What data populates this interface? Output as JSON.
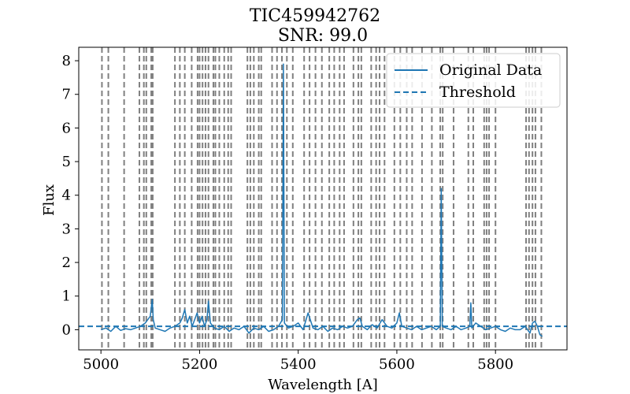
{
  "chart_data": {
    "type": "line",
    "title": "TIC459942762",
    "subtitle": "SNR: 99.0",
    "xlabel": "Wavelength [A]",
    "ylabel": "Flux",
    "xlim": [
      4955,
      5945
    ],
    "ylim": [
      -0.6,
      8.4
    ],
    "xticks": [
      5000,
      5200,
      5400,
      5600,
      5800
    ],
    "yticks": [
      0,
      1,
      2,
      3,
      4,
      5,
      6,
      7,
      8
    ],
    "grid": false,
    "legend": {
      "placement": "top-right",
      "entries": [
        "Original Data",
        "Threshold"
      ]
    },
    "colors": {
      "data": "#1f77b4",
      "threshold": "#1f77b4",
      "vlines": "#808080"
    },
    "series": [
      {
        "name": "Original Data",
        "style": "solid",
        "x": [
          5000,
          5010,
          5020,
          5030,
          5040,
          5050,
          5060,
          5070,
          5080,
          5090,
          5100,
          5104,
          5106,
          5110,
          5120,
          5130,
          5140,
          5150,
          5160,
          5165,
          5170,
          5175,
          5180,
          5185,
          5190,
          5195,
          5200,
          5205,
          5210,
          5215,
          5218,
          5222,
          5230,
          5240,
          5250,
          5260,
          5270,
          5280,
          5290,
          5300,
          5310,
          5320,
          5330,
          5340,
          5350,
          5360,
          5368,
          5370,
          5372,
          5380,
          5390,
          5400,
          5410,
          5420,
          5430,
          5440,
          5450,
          5460,
          5470,
          5480,
          5490,
          5500,
          5510,
          5520,
          5525,
          5530,
          5540,
          5550,
          5560,
          5570,
          5580,
          5590,
          5600,
          5605,
          5610,
          5620,
          5630,
          5640,
          5650,
          5660,
          5670,
          5680,
          5688,
          5690,
          5692,
          5700,
          5710,
          5720,
          5730,
          5740,
          5748,
          5750,
          5752,
          5760,
          5770,
          5780,
          5790,
          5800,
          5810,
          5820,
          5830,
          5840,
          5850,
          5860,
          5870,
          5875,
          5880,
          5885,
          5890,
          5895
        ],
        "y": [
          0.0,
          0.05,
          -0.05,
          0.1,
          -0.02,
          0.03,
          0.0,
          0.05,
          0.1,
          0.2,
          0.4,
          0.9,
          0.3,
          0.05,
          0.0,
          -0.05,
          0.05,
          0.1,
          0.2,
          0.35,
          0.6,
          0.2,
          0.4,
          0.1,
          0.3,
          0.5,
          0.2,
          0.4,
          0.1,
          0.3,
          0.85,
          0.2,
          0.05,
          0.0,
          0.1,
          -0.05,
          0.05,
          0.0,
          0.1,
          -0.1,
          0.05,
          0.0,
          0.1,
          -0.05,
          0.0,
          0.1,
          0.3,
          7.9,
          0.2,
          0.05,
          0.1,
          0.2,
          0.0,
          0.5,
          0.05,
          0.0,
          0.1,
          -0.05,
          0.05,
          0.0,
          0.1,
          0.05,
          0.1,
          0.3,
          0.35,
          0.1,
          0.0,
          0.15,
          0.05,
          0.3,
          0.1,
          0.05,
          0.2,
          0.5,
          0.1,
          0.05,
          0.0,
          0.1,
          0.0,
          0.05,
          0.1,
          0.0,
          0.1,
          4.2,
          0.1,
          0.05,
          0.0,
          0.1,
          0.0,
          0.05,
          0.1,
          0.8,
          0.05,
          0.2,
          0.1,
          0.0,
          0.05,
          0.1,
          0.0,
          -0.05,
          0.05,
          0.0,
          0.0,
          0.1,
          -0.1,
          0.2,
          0.25,
          0.1,
          -0.15,
          -0.2
        ]
      },
      {
        "name": "Threshold",
        "style": "dashed",
        "y": 0.1
      }
    ],
    "vlines_x": [
      5002,
      5015,
      5047,
      5078,
      5087,
      5092,
      5102,
      5105,
      5150,
      5160,
      5170,
      5184,
      5196,
      5200,
      5206,
      5212,
      5218,
      5228,
      5232,
      5240,
      5250,
      5258,
      5264,
      5297,
      5303,
      5310,
      5320,
      5325,
      5347,
      5357,
      5367,
      5377,
      5389,
      5412,
      5423,
      5435,
      5448,
      5463,
      5473,
      5484,
      5493,
      5512,
      5522,
      5528,
      5548,
      5558,
      5565,
      5575,
      5595,
      5607,
      5620,
      5631,
      5651,
      5671,
      5688,
      5693,
      5715,
      5745,
      5755,
      5777,
      5782,
      5787,
      5800,
      5862,
      5868,
      5875,
      5881,
      5893
    ]
  }
}
